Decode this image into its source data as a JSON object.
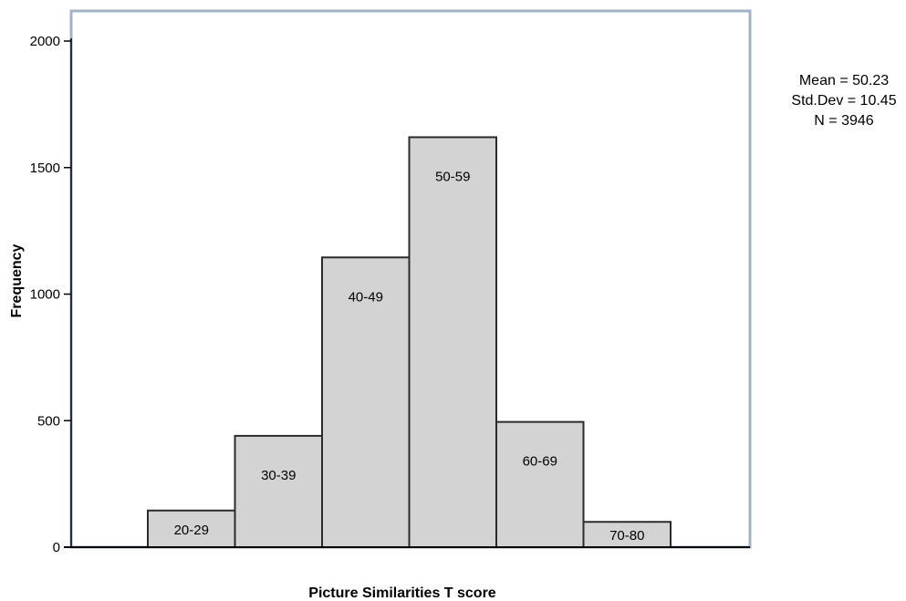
{
  "chart_data": {
    "type": "bar",
    "title": "",
    "xlabel": "Picture Similarities T score",
    "ylabel": "Frequency",
    "ylim": [
      0,
      2000
    ],
    "yticks": [
      0,
      500,
      1000,
      1500,
      2000
    ],
    "categories": [
      "20-29",
      "30-39",
      "40-49",
      "50-59",
      "60-69",
      "70-80"
    ],
    "values": [
      145,
      440,
      1145,
      1620,
      495,
      100
    ],
    "grid": false,
    "legend": "none",
    "colors": {
      "bar_fill": "#d3d3d3",
      "bar_stroke": "#2b2b2b",
      "frame": "#9fb4cc",
      "axis": "#000000"
    },
    "annotations": [
      "Mean = 50.23",
      "Std.Dev = 10.45",
      "N = 3946"
    ]
  }
}
